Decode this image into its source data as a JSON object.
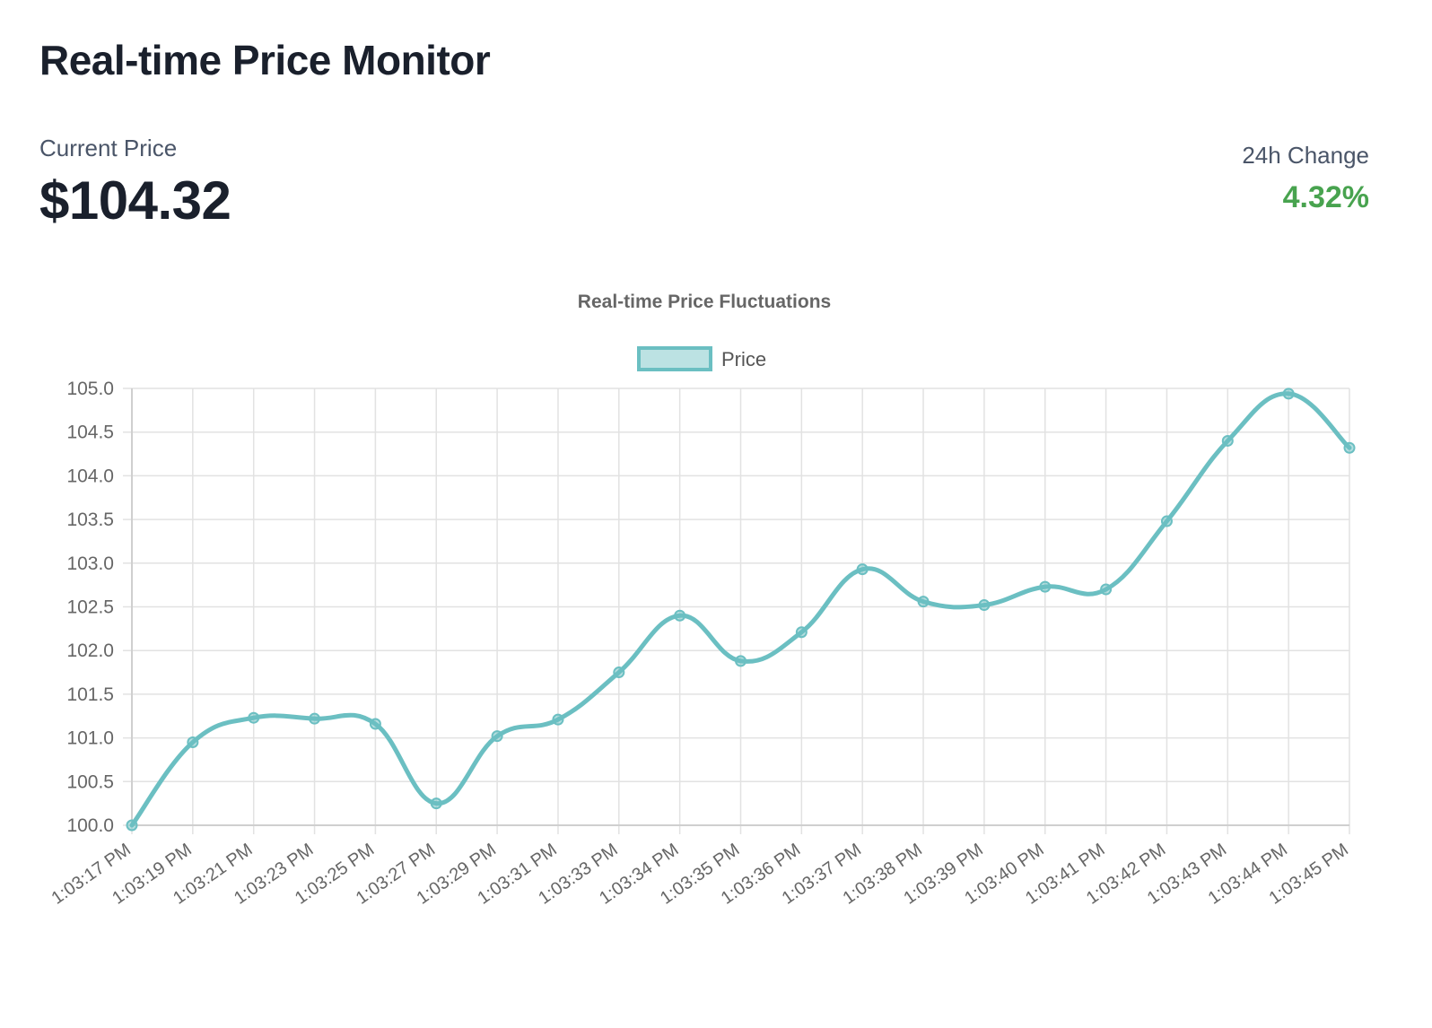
{
  "header": {
    "title": "Real-time Price Monitor"
  },
  "price": {
    "label": "Current Price",
    "value": "$104.32"
  },
  "change": {
    "label": "24h Change",
    "value": "4.32%",
    "color": "#48a34f"
  },
  "chart_data": {
    "type": "line",
    "title": "Real-time Price Fluctuations",
    "xlabel": "",
    "ylabel": "",
    "categories": [
      "1:03:17 PM",
      "1:03:19 PM",
      "1:03:21 PM",
      "1:03:23 PM",
      "1:03:25 PM",
      "1:03:27 PM",
      "1:03:29 PM",
      "1:03:31 PM",
      "1:03:33 PM",
      "1:03:34 PM",
      "1:03:35 PM",
      "1:03:36 PM",
      "1:03:37 PM",
      "1:03:38 PM",
      "1:03:39 PM",
      "1:03:40 PM",
      "1:03:41 PM",
      "1:03:42 PM",
      "1:03:43 PM",
      "1:03:44 PM",
      "1:03:45 PM"
    ],
    "series": [
      {
        "name": "Price",
        "color": "#6bbfc2",
        "values": [
          100.0,
          100.95,
          101.23,
          101.22,
          101.16,
          100.25,
          101.02,
          101.21,
          101.75,
          102.4,
          101.88,
          102.21,
          102.93,
          102.56,
          102.52,
          102.73,
          102.7,
          103.48,
          104.4,
          104.94,
          104.32
        ]
      }
    ],
    "ylim": [
      100.0,
      105.0
    ],
    "yticks": [
      "100.0",
      "100.5",
      "101.0",
      "101.5",
      "102.0",
      "102.5",
      "103.0",
      "103.5",
      "104.0",
      "104.5",
      "105.0"
    ],
    "grid": true,
    "legend": "top-center",
    "smooth": true
  }
}
